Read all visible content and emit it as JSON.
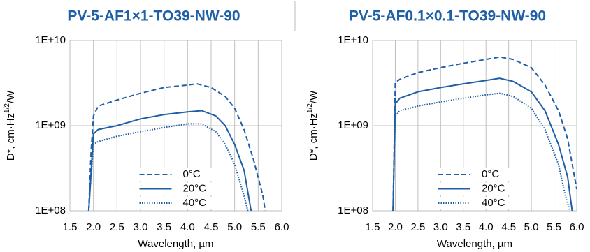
{
  "chart_data": [
    {
      "type": "line",
      "title": "PV-5-AF1×1-TO39-NW-90",
      "xlabel": "Wavelength, µm",
      "ylabel": {
        "text": "D*, cm·Hz",
        "sup": "1/2",
        "tail": "/W"
      },
      "xlim": [
        1.5,
        6.0
      ],
      "ylim": [
        100000000,
        10000000000
      ],
      "log_y": true,
      "grid": true,
      "legend": "lower center",
      "xticks": [
        1.5,
        {
          "value": 2,
          "label": "2.0"
        },
        2.5,
        {
          "value": 3,
          "label": "3.0"
        },
        3.5,
        {
          "value": 4,
          "label": "4.0"
        },
        4.5,
        {
          "value": 5,
          "label": "5.0"
        },
        5.5,
        {
          "value": 6,
          "label": "6.0"
        }
      ],
      "yticks": [
        {
          "value": 100000000,
          "label": "1E+08"
        },
        {
          "value": 1000000000,
          "label": "1E+09"
        },
        {
          "value": 10000000000,
          "label": "1E+10"
        }
      ],
      "series": [
        {
          "name": "0°C",
          "color": "#1f5fa6",
          "dash": "dashed",
          "x": [
            1.9,
            1.95,
            2.0,
            2.1,
            2.5,
            3.0,
            3.5,
            4.0,
            4.2,
            4.5,
            4.8,
            5.0,
            5.2,
            5.4,
            5.6,
            5.65
          ],
          "values": [
            100000000,
            500000000,
            1300000000,
            1700000000,
            2000000000,
            2400000000,
            2800000000,
            3000000000,
            3100000000,
            2800000000,
            2200000000,
            1600000000,
            900000000,
            400000000,
            150000000,
            100000000
          ]
        },
        {
          "name": "20°C",
          "color": "#1f5fa6",
          "dash": "solid",
          "x": [
            1.9,
            2.0,
            2.1,
            2.5,
            3.0,
            3.5,
            4.0,
            4.3,
            4.6,
            4.8,
            5.0,
            5.2,
            5.35
          ],
          "values": [
            100000000,
            800000000,
            900000000,
            1000000000,
            1200000000,
            1350000000,
            1450000000,
            1500000000,
            1300000000,
            1000000000,
            600000000,
            300000000,
            100000000
          ]
        },
        {
          "name": "40°C",
          "color": "#1f5fa6",
          "dash": "dotted",
          "x": [
            1.9,
            2.0,
            2.1,
            2.5,
            3.0,
            3.5,
            4.0,
            4.3,
            4.6,
            4.8,
            5.0,
            5.2,
            5.28
          ],
          "values": [
            100000000,
            600000000,
            650000000,
            750000000,
            850000000,
            950000000,
            1050000000,
            1050000000,
            850000000,
            600000000,
            350000000,
            150000000,
            100000000
          ]
        }
      ]
    },
    {
      "type": "line",
      "title": "PV-5-AF0.1×0.1-TO39-NW-90",
      "xlabel": "Wavelength, µm",
      "ylabel": {
        "text": "D*, cm·Hz",
        "sup": "1/2",
        "tail": "/W"
      },
      "xlim": [
        1.5,
        6.0
      ],
      "ylim": [
        100000000,
        10000000000
      ],
      "log_y": true,
      "grid": true,
      "legend": "lower center",
      "xticks": [
        1.5,
        {
          "value": 2,
          "label": "2.0"
        },
        2.5,
        {
          "value": 3,
          "label": "3.0"
        },
        3.5,
        {
          "value": 4,
          "label": "4.0"
        },
        4.5,
        {
          "value": 5,
          "label": "5.0"
        },
        5.5,
        {
          "value": 6,
          "label": "6.0"
        }
      ],
      "yticks": [
        {
          "value": 100000000,
          "label": "1E+08"
        },
        {
          "value": 1000000000,
          "label": "1E+09"
        },
        {
          "value": 10000000000,
          "label": "1E+10"
        }
      ],
      "series": [
        {
          "name": "0°C",
          "color": "#1f5fa6",
          "dash": "dashed",
          "x": [
            1.95,
            2.0,
            2.1,
            2.5,
            3.0,
            3.5,
            4.0,
            4.3,
            4.6,
            5.0,
            5.3,
            5.6,
            5.8,
            6.0
          ],
          "values": [
            100000000,
            3200000000,
            3500000000,
            4200000000,
            4800000000,
            5400000000,
            6000000000,
            6400000000,
            6000000000,
            4800000000,
            3000000000,
            1500000000,
            700000000,
            180000000
          ]
        },
        {
          "name": "20°C",
          "color": "#1f5fa6",
          "dash": "solid",
          "x": [
            1.95,
            2.0,
            2.1,
            2.5,
            3.0,
            3.5,
            4.0,
            4.3,
            4.6,
            5.0,
            5.3,
            5.6,
            5.8,
            5.9
          ],
          "values": [
            100000000,
            1800000000,
            2100000000,
            2500000000,
            2800000000,
            3100000000,
            3400000000,
            3600000000,
            3300000000,
            2500000000,
            1500000000,
            600000000,
            250000000,
            100000000
          ]
        },
        {
          "name": "40°C",
          "color": "#1f5fa6",
          "dash": "dotted",
          "x": [
            1.95,
            2.0,
            2.1,
            2.5,
            3.0,
            3.5,
            4.0,
            4.3,
            4.6,
            5.0,
            5.3,
            5.6,
            5.75,
            5.85
          ],
          "values": [
            100000000,
            1300000000,
            1500000000,
            1700000000,
            1900000000,
            2100000000,
            2300000000,
            2400000000,
            2200000000,
            1600000000,
            900000000,
            350000000,
            150000000,
            100000000
          ]
        }
      ]
    }
  ]
}
